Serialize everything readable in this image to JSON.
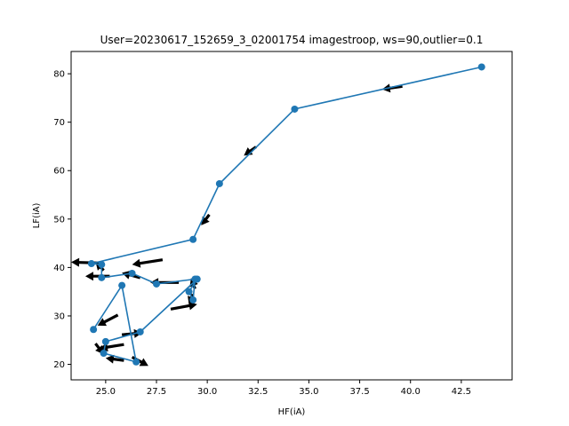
{
  "chart_data": {
    "type": "line",
    "title": "User=20230617_152659_3_02001754 imagestroop, ws=90,outlier=0.1",
    "xlabel": "HF(iA)",
    "ylabel": "LF(iA)",
    "xlim": [
      23.3,
      45.0
    ],
    "ylim": [
      16.8,
      84.6
    ],
    "xticks": [
      25.0,
      27.5,
      30.0,
      32.5,
      35.0,
      37.5,
      40.0,
      42.5
    ],
    "xtick_labels": [
      "25.0",
      "27.5",
      "30.0",
      "32.5",
      "35.0",
      "37.5",
      "40.0",
      "42.5"
    ],
    "yticks": [
      20,
      30,
      40,
      50,
      60,
      70,
      80
    ],
    "ytick_labels": [
      "20",
      "30",
      "40",
      "50",
      "60",
      "70",
      "80"
    ],
    "grid": false,
    "line_color": "#1f77b4",
    "arrow_color": "#000000",
    "series": [
      {
        "x": [
          43.5,
          34.3,
          30.6,
          29.3,
          24.3,
          24.8,
          24.8,
          26.3,
          27.5,
          29.4,
          29.3,
          29.1,
          29.5,
          26.7,
          25.0,
          24.9,
          26.5,
          25.8,
          24.4
        ],
        "y": [
          81.4,
          72.7,
          57.3,
          45.8,
          40.8,
          40.6,
          37.9,
          38.8,
          36.6,
          37.6,
          33.3,
          35.0,
          37.6,
          26.7,
          24.7,
          22.3,
          20.5,
          36.3,
          27.2
        ]
      }
    ],
    "arrows": [
      {
        "x": 39.6,
        "y": 77.4,
        "dx": -1.0,
        "dy": -0.6
      },
      {
        "x": 32.4,
        "y": 64.9,
        "dx": -0.6,
        "dy": -1.8
      },
      {
        "x": 30.1,
        "y": 50.9,
        "dx": -0.4,
        "dy": -2.2
      },
      {
        "x": 27.8,
        "y": 41.6,
        "dx": -1.5,
        "dy": -1.0
      },
      {
        "x": 24.9,
        "y": 40.9,
        "dx": -1.6,
        "dy": 0.2
      },
      {
        "x": 24.9,
        "y": 39.4,
        "dx": -0.4,
        "dy": 1.8
      },
      {
        "x": 25.2,
        "y": 38.2,
        "dx": -1.2,
        "dy": 0.0
      },
      {
        "x": 28.6,
        "y": 36.9,
        "dx": -1.4,
        "dy": 0.0
      },
      {
        "x": 26.7,
        "y": 37.9,
        "dx": -0.9,
        "dy": 1.0
      },
      {
        "x": 29.4,
        "y": 35.6,
        "dx": -0.2,
        "dy": 2.2
      },
      {
        "x": 29.3,
        "y": 34.5,
        "dx": -0.2,
        "dy": -2.2
      },
      {
        "x": 28.2,
        "y": 31.4,
        "dx": 1.3,
        "dy": 1.0
      },
      {
        "x": 25.6,
        "y": 30.2,
        "dx": -1.0,
        "dy": -2.2
      },
      {
        "x": 24.5,
        "y": 24.3,
        "dx": 0.4,
        "dy": -2.2
      },
      {
        "x": 25.8,
        "y": 26.1,
        "dx": 1.0,
        "dy": 0.4
      },
      {
        "x": 25.9,
        "y": 24.1,
        "dx": -1.2,
        "dy": -0.8
      },
      {
        "x": 25.9,
        "y": 20.8,
        "dx": -0.9,
        "dy": 0.5
      },
      {
        "x": 26.3,
        "y": 21.5,
        "dx": 0.8,
        "dy": -1.8
      }
    ]
  }
}
